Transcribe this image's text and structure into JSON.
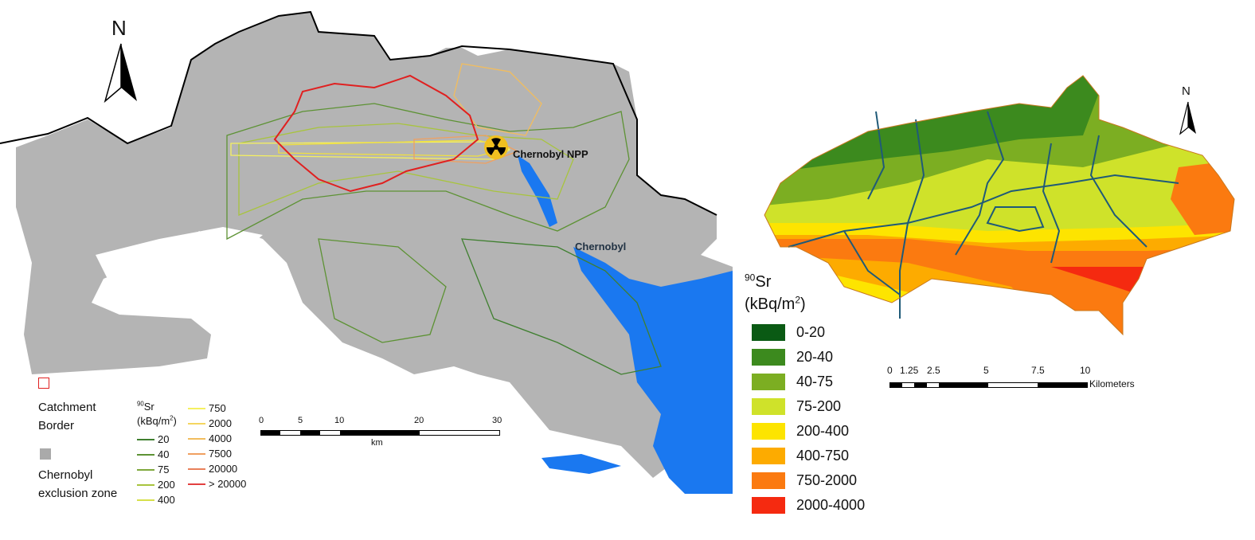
{
  "left_map": {
    "north_label": "N",
    "places": {
      "npp": "Chernobyl NPP",
      "town": "Chernobyl"
    },
    "legend": {
      "catchment_label": "Catchment Border",
      "zone_label": "Chernobyl exclusion zone",
      "isotope_sup": "90",
      "isotope": "Sr",
      "unit": "(kBq/m",
      "unit_sup": "2",
      "unit_close": ")",
      "contours": [
        {
          "label": "20",
          "color": "#3f7f2f"
        },
        {
          "label": "40",
          "color": "#5d9234"
        },
        {
          "label": "75",
          "color": "#7fa83c"
        },
        {
          "label": "200",
          "color": "#a8c43e"
        },
        {
          "label": "400",
          "color": "#d6e04a"
        },
        {
          "label": "750",
          "color": "#f5f060"
        },
        {
          "label": "2000",
          "color": "#f5d660"
        },
        {
          "label": "4000",
          "color": "#f2bd5e"
        },
        {
          "label": "7500",
          "color": "#f0a060"
        },
        {
          "label": "20000",
          "color": "#e9805a"
        },
        {
          "label": "> 20000",
          "color": "#e24040"
        }
      ]
    },
    "scale": {
      "ticks": [
        "0",
        "5",
        "10",
        "20",
        "30"
      ],
      "unit": "km"
    },
    "colors": {
      "zone": "#b4b4b4",
      "water": "#1a78f0",
      "catchment": "#e02020"
    }
  },
  "right_map": {
    "north_label": "N",
    "legend": {
      "isotope_sup": "90",
      "isotope": "Sr",
      "unit": "(kBq/m",
      "unit_sup": "2",
      "unit_close": ")",
      "classes": [
        {
          "label": "0-20",
          "color": "#0a5a14"
        },
        {
          "label": "20-40",
          "color": "#3c8a1e"
        },
        {
          "label": "40-75",
          "color": "#7cae22"
        },
        {
          "label": "75-200",
          "color": "#cfe22a"
        },
        {
          "label": "200-400",
          "color": "#fde400"
        },
        {
          "label": "400-750",
          "color": "#fdab00"
        },
        {
          "label": "750-2000",
          "color": "#fb7a10"
        },
        {
          "label": "2000-4000",
          "color": "#f52a10"
        }
      ]
    },
    "scale": {
      "ticks": [
        "0",
        "1.25",
        "2.5",
        "5",
        "7.5",
        "10"
      ],
      "unit": "Kilometers"
    },
    "colors": {
      "streams": "#1f5a78"
    }
  }
}
